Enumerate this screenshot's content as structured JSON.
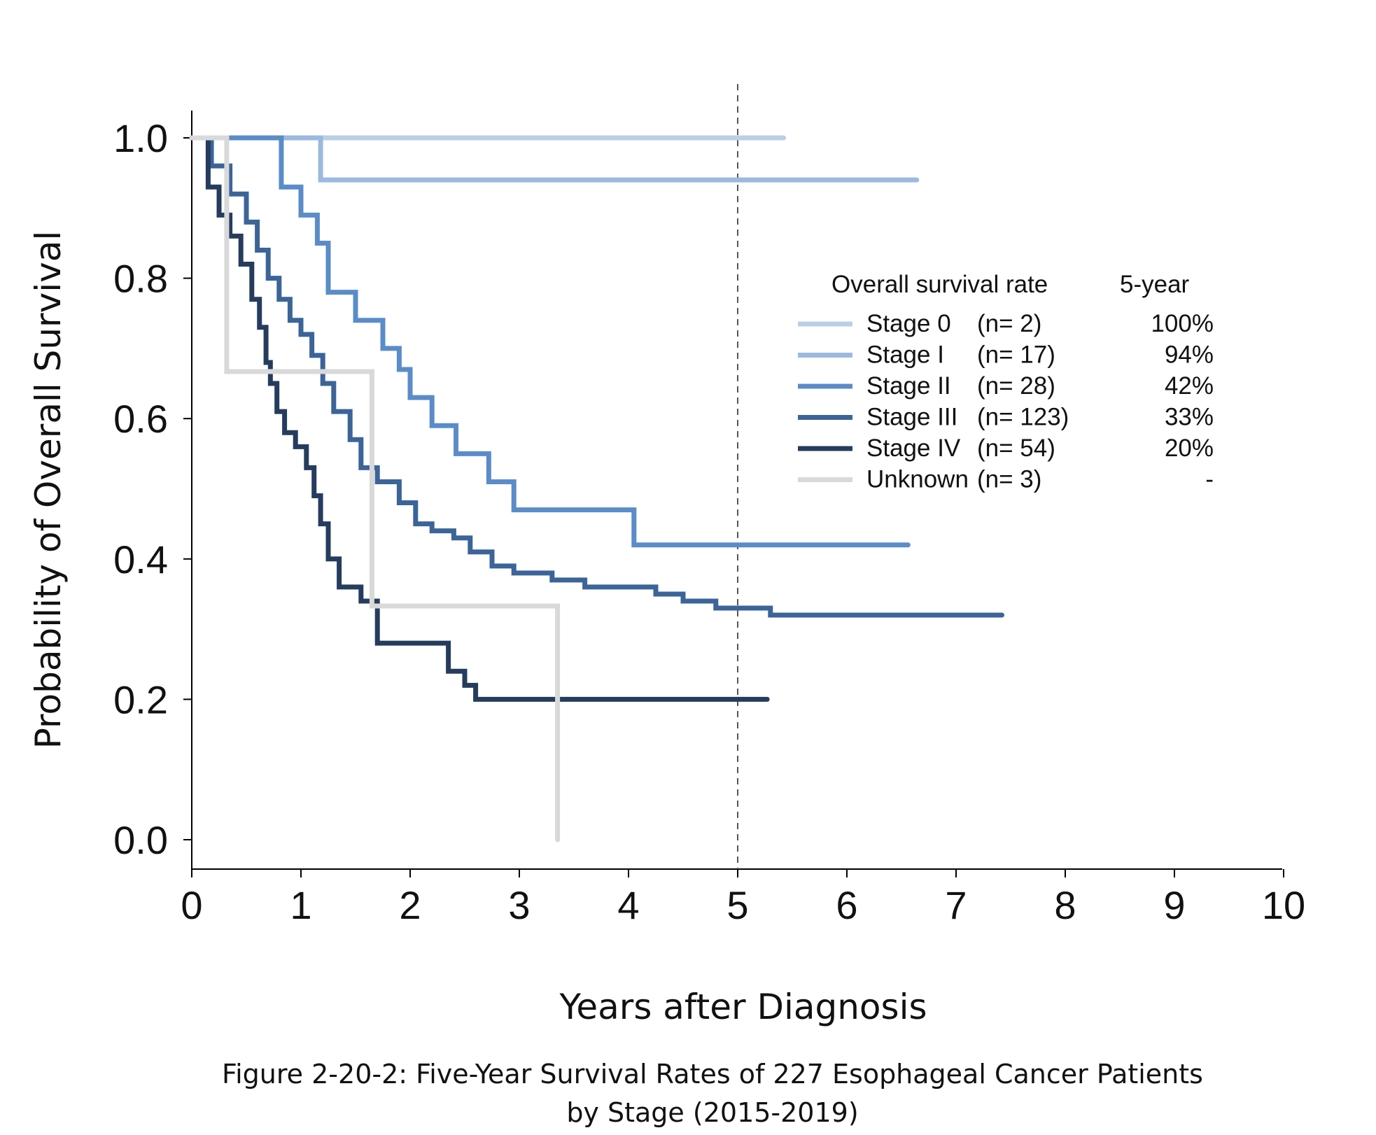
{
  "chart_data": {
    "type": "line",
    "subtype": "kaplan-meier step curves",
    "xlabel": "Years after Diagnosis",
    "ylabel": "Probability of Overall Survival",
    "xlim": [
      0,
      10
    ],
    "ylim": [
      0,
      1
    ],
    "x_ticks": [
      "0",
      "1",
      "2",
      "3",
      "4",
      "5",
      "6",
      "7",
      "8",
      "9",
      "10"
    ],
    "y_ticks": [
      "0.0",
      "0.2",
      "0.4",
      "0.6",
      "0.8",
      "1.0"
    ],
    "reference_line_x": 5,
    "legend": {
      "title": "Overall survival rate",
      "rate_header": "5-year",
      "placement": "right"
    },
    "series": [
      {
        "name": "Stage 0",
        "n_label": "(n= 2)",
        "rate": "100%",
        "color": "#b9cfe6",
        "x": [
          0,
          5.42
        ],
        "y": [
          1.0,
          1.0
        ]
      },
      {
        "name": "Stage I",
        "n_label": "(n= 17)",
        "rate": "94%",
        "color": "#9cb9df",
        "x": [
          0,
          1.18,
          6.64
        ],
        "y": [
          1.0,
          0.94,
          0.94
        ]
      },
      {
        "name": "Stage II",
        "n_label": "(n= 28)",
        "rate": "42%",
        "color": "#5b8cc9",
        "x": [
          0,
          0.82,
          1.0,
          1.15,
          1.25,
          1.5,
          1.75,
          1.9,
          2.0,
          2.2,
          2.42,
          2.72,
          2.95,
          3.25,
          4.05,
          6.56
        ],
        "y": [
          1.0,
          0.93,
          0.89,
          0.85,
          0.78,
          0.74,
          0.7,
          0.67,
          0.63,
          0.59,
          0.55,
          0.51,
          0.47,
          0.47,
          0.42,
          0.42
        ]
      },
      {
        "name": "Stage III",
        "n_label": "(n= 123)",
        "rate": "33%",
        "color": "#3b6499",
        "x": [
          0,
          0.18,
          0.35,
          0.5,
          0.6,
          0.7,
          0.8,
          0.9,
          1.0,
          1.1,
          1.2,
          1.3,
          1.45,
          1.55,
          1.7,
          1.9,
          2.05,
          2.2,
          2.4,
          2.55,
          2.75,
          2.95,
          3.3,
          3.6,
          4.25,
          4.5,
          4.8,
          5.3,
          7.42
        ],
        "y": [
          1.0,
          0.96,
          0.92,
          0.88,
          0.84,
          0.8,
          0.77,
          0.74,
          0.72,
          0.69,
          0.65,
          0.61,
          0.57,
          0.53,
          0.51,
          0.48,
          0.45,
          0.44,
          0.43,
          0.41,
          0.39,
          0.38,
          0.37,
          0.36,
          0.35,
          0.34,
          0.33,
          0.32,
          0.32
        ]
      },
      {
        "name": "Stage IV",
        "n_label": "(n= 54)",
        "rate": "20%",
        "color": "#253c5e",
        "x": [
          0,
          0.15,
          0.25,
          0.35,
          0.45,
          0.55,
          0.62,
          0.68,
          0.72,
          0.78,
          0.85,
          0.95,
          1.05,
          1.12,
          1.18,
          1.25,
          1.35,
          1.55,
          1.7,
          2.35,
          2.5,
          2.6,
          5.27
        ],
        "y": [
          1.0,
          0.93,
          0.89,
          0.86,
          0.82,
          0.77,
          0.73,
          0.68,
          0.65,
          0.61,
          0.58,
          0.56,
          0.53,
          0.49,
          0.45,
          0.4,
          0.36,
          0.34,
          0.28,
          0.24,
          0.22,
          0.2,
          0.2
        ]
      },
      {
        "name": "Unknown",
        "n_label": "(n= 3)",
        "rate": "-",
        "color": "#d9d9d9",
        "x": [
          0,
          0.32,
          1.65,
          3.35,
          3.35
        ],
        "y": [
          1.0,
          0.667,
          0.333,
          0.333,
          0.0
        ]
      }
    ]
  },
  "caption": {
    "line1": "Figure 2-20-2: Five-Year Survival Rates of 227 Esophageal Cancer Patients",
    "line2": "by Stage (2015-2019)"
  }
}
